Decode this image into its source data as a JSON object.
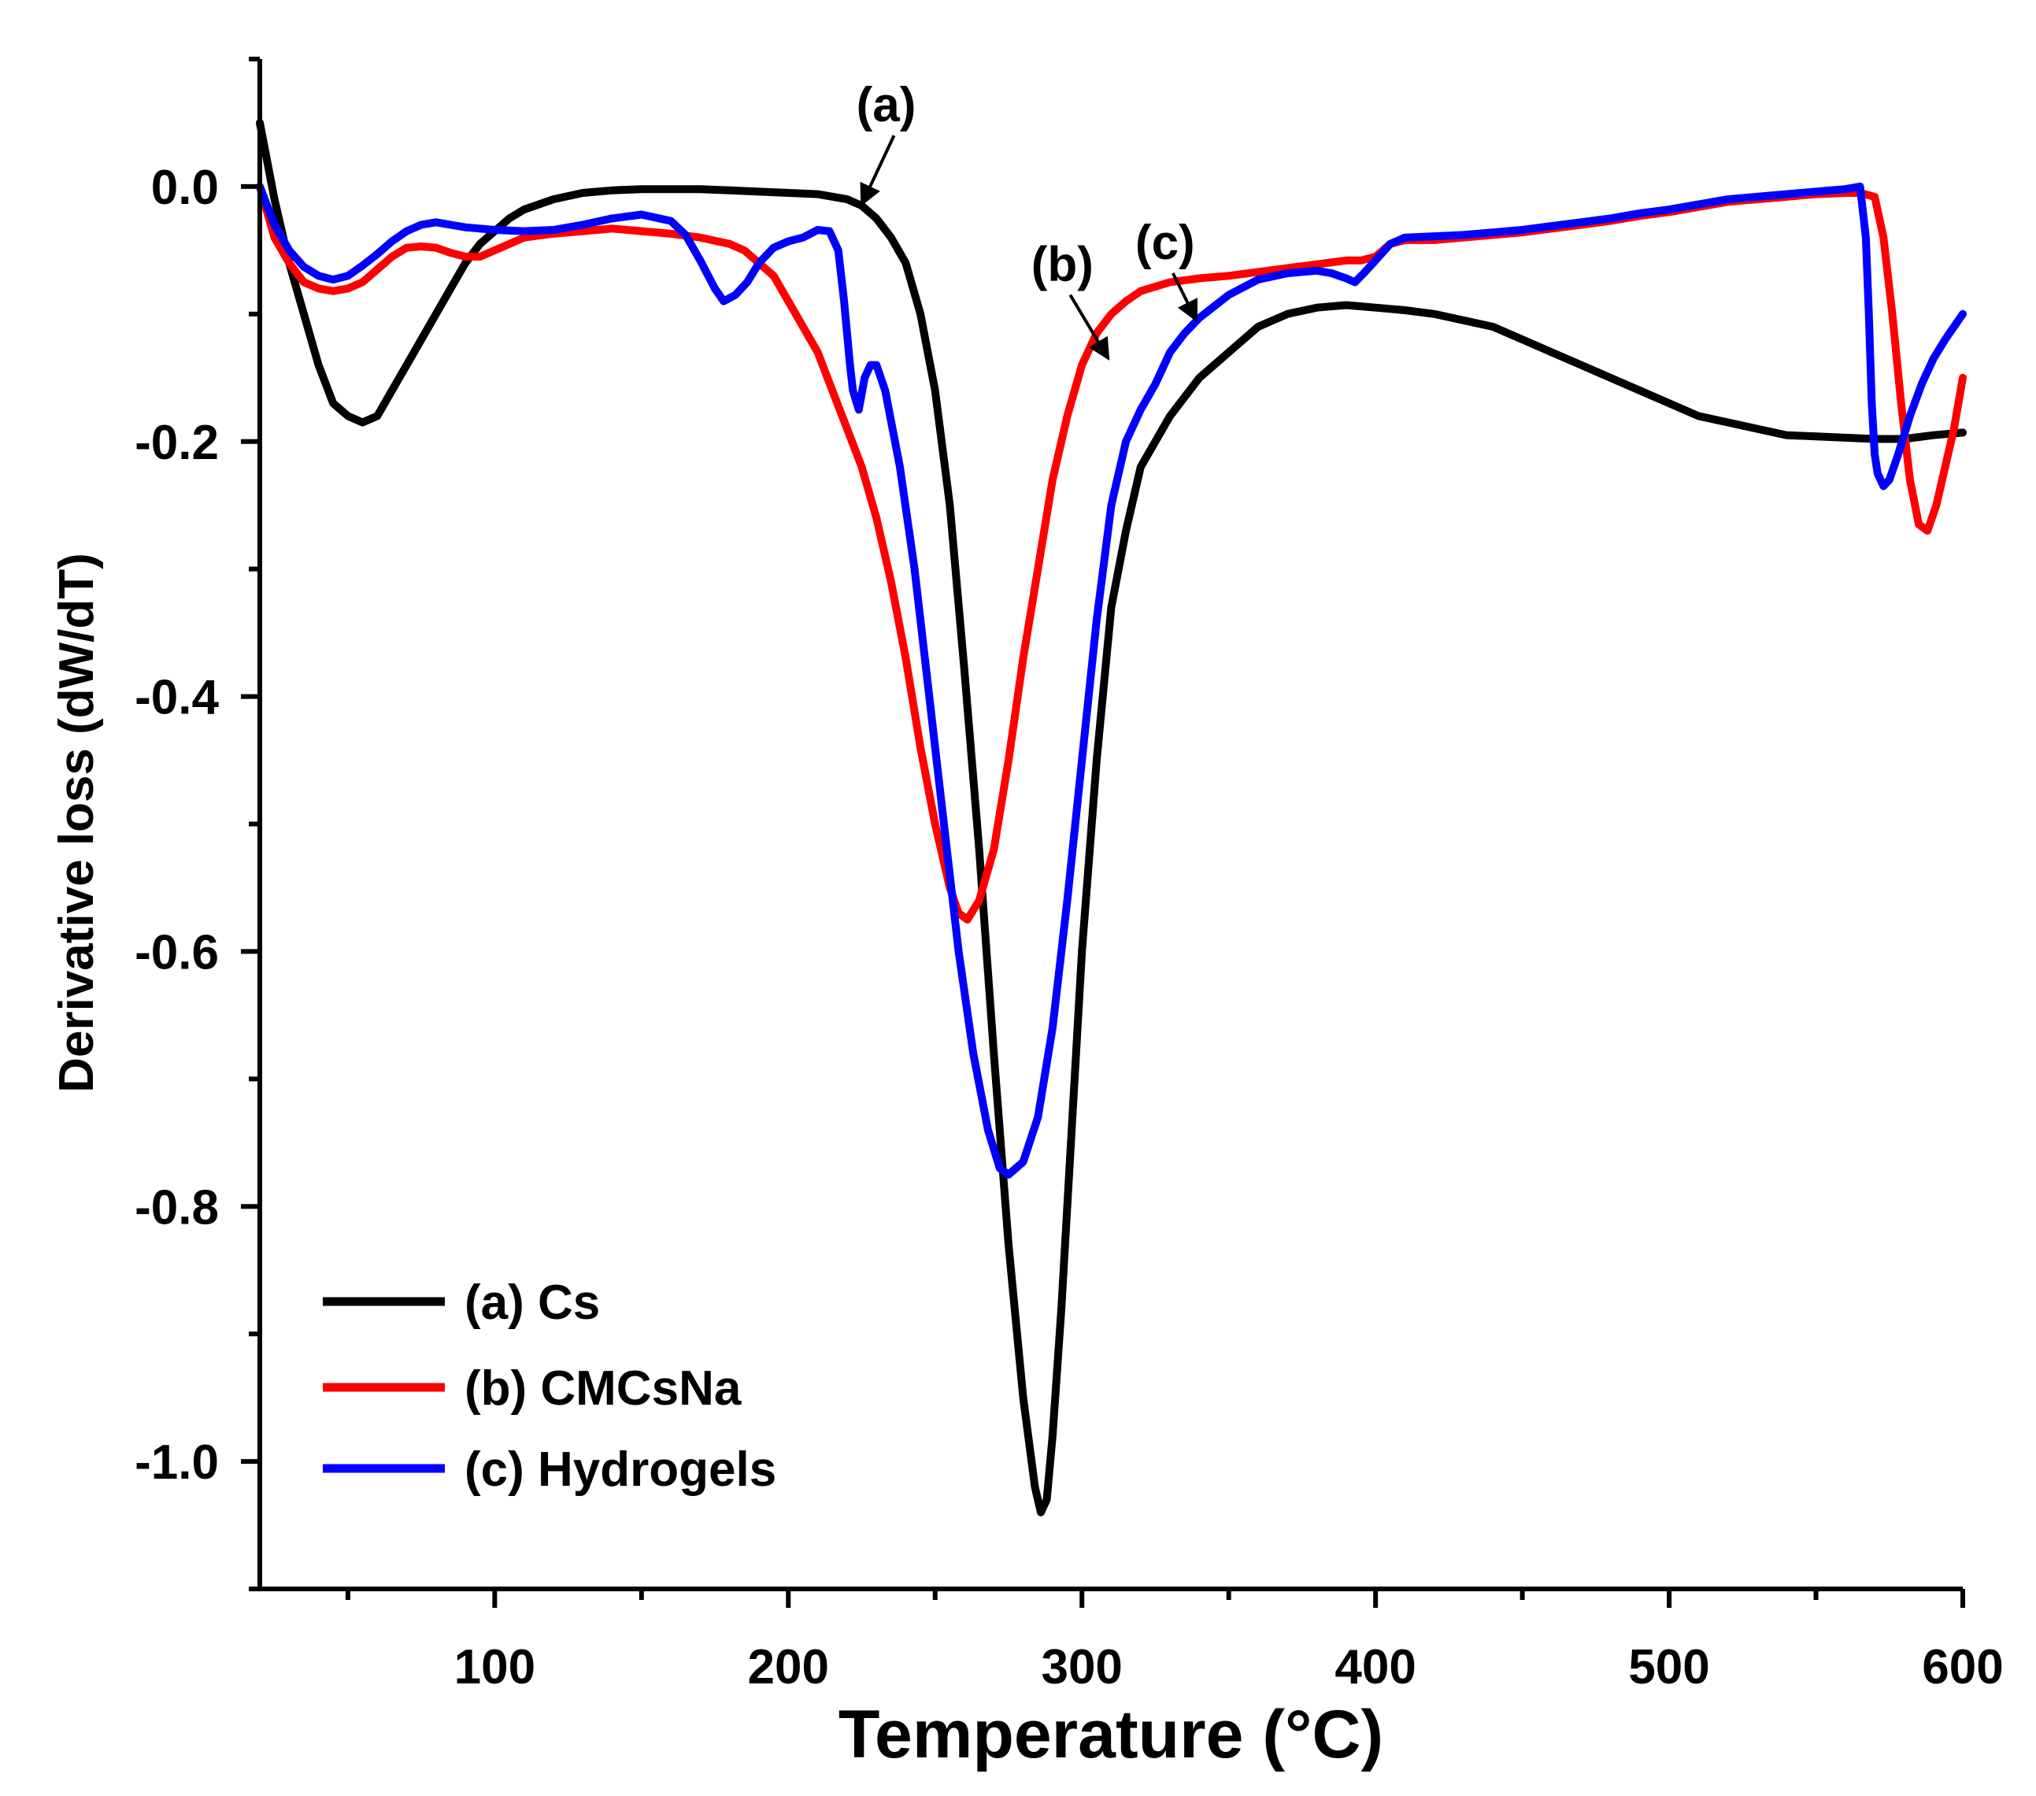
{
  "chart_data": {
    "type": "line",
    "xlabel": "Temperature (°C)",
    "ylabel": "Derivative loss (dW/dT)",
    "xlim": [
      20,
      600
    ],
    "ylim": [
      -1.1,
      0.1
    ],
    "x_ticks": [
      {
        "value": 100,
        "label": "100"
      },
      {
        "value": 200,
        "label": "200"
      },
      {
        "value": 300,
        "label": "300"
      },
      {
        "value": 400,
        "label": "400"
      },
      {
        "value": 500,
        "label": "500"
      },
      {
        "value": 600,
        "label": "600"
      }
    ],
    "x_minor_ticks": [
      50,
      150,
      250,
      350,
      450,
      550
    ],
    "y_ticks": [
      {
        "value": 0.0,
        "label": "0.0"
      },
      {
        "value": -0.2,
        "label": "-0.2"
      },
      {
        "value": -0.4,
        "label": "-0.4"
      },
      {
        "value": -0.6,
        "label": "-0.6"
      },
      {
        "value": -0.8,
        "label": "-0.8"
      },
      {
        "value": -1.0,
        "label": "-1.0"
      }
    ],
    "y_minor_ticks": [
      0.1,
      -0.1,
      -0.3,
      -0.5,
      -0.7,
      -0.9,
      -1.1
    ],
    "series": [
      {
        "name": "(a) Cs",
        "color": "#000000",
        "points": [
          [
            20,
            0.05
          ],
          [
            25,
            -0.01
          ],
          [
            30,
            -0.06
          ],
          [
            35,
            -0.1
          ],
          [
            40,
            -0.14
          ],
          [
            45,
            -0.17
          ],
          [
            50,
            -0.18
          ],
          [
            55,
            -0.185
          ],
          [
            60,
            -0.18
          ],
          [
            65,
            -0.16
          ],
          [
            70,
            -0.14
          ],
          [
            75,
            -0.12
          ],
          [
            80,
            -0.1
          ],
          [
            85,
            -0.08
          ],
          [
            90,
            -0.06
          ],
          [
            95,
            -0.045
          ],
          [
            100,
            -0.035
          ],
          [
            105,
            -0.025
          ],
          [
            110,
            -0.018
          ],
          [
            120,
            -0.01
          ],
          [
            130,
            -0.005
          ],
          [
            140,
            -0.003
          ],
          [
            150,
            -0.002
          ],
          [
            160,
            -0.002
          ],
          [
            170,
            -0.002
          ],
          [
            180,
            -0.003
          ],
          [
            190,
            -0.004
          ],
          [
            200,
            -0.005
          ],
          [
            210,
            -0.006
          ],
          [
            220,
            -0.01
          ],
          [
            225,
            -0.015
          ],
          [
            230,
            -0.025
          ],
          [
            235,
            -0.04
          ],
          [
            240,
            -0.06
          ],
          [
            245,
            -0.1
          ],
          [
            250,
            -0.16
          ],
          [
            255,
            -0.25
          ],
          [
            260,
            -0.38
          ],
          [
            265,
            -0.52
          ],
          [
            270,
            -0.68
          ],
          [
            275,
            -0.83
          ],
          [
            280,
            -0.95
          ],
          [
            284,
            -1.02
          ],
          [
            286,
            -1.04
          ],
          [
            288,
            -1.03
          ],
          [
            290,
            -0.98
          ],
          [
            293,
            -0.88
          ],
          [
            296,
            -0.76
          ],
          [
            300,
            -0.6
          ],
          [
            305,
            -0.45
          ],
          [
            310,
            -0.33
          ],
          [
            315,
            -0.27
          ],
          [
            320,
            -0.22
          ],
          [
            330,
            -0.18
          ],
          [
            340,
            -0.15
          ],
          [
            350,
            -0.13
          ],
          [
            360,
            -0.11
          ],
          [
            370,
            -0.1
          ],
          [
            380,
            -0.095
          ],
          [
            390,
            -0.093
          ],
          [
            400,
            -0.095
          ],
          [
            410,
            -0.097
          ],
          [
            420,
            -0.1
          ],
          [
            430,
            -0.105
          ],
          [
            440,
            -0.11
          ],
          [
            450,
            -0.12
          ],
          [
            460,
            -0.13
          ],
          [
            470,
            -0.14
          ],
          [
            480,
            -0.15
          ],
          [
            490,
            -0.16
          ],
          [
            500,
            -0.17
          ],
          [
            510,
            -0.18
          ],
          [
            520,
            -0.185
          ],
          [
            530,
            -0.19
          ],
          [
            540,
            -0.195
          ],
          [
            550,
            -0.196
          ],
          [
            560,
            -0.197
          ],
          [
            570,
            -0.198
          ],
          [
            580,
            -0.198
          ],
          [
            590,
            -0.195
          ],
          [
            600,
            -0.193
          ]
        ]
      },
      {
        "name": "(b) CMCsNa",
        "color": "#ff0000",
        "points": [
          [
            20,
            0.0
          ],
          [
            25,
            -0.04
          ],
          [
            30,
            -0.06
          ],
          [
            35,
            -0.075
          ],
          [
            40,
            -0.08
          ],
          [
            45,
            -0.082
          ],
          [
            50,
            -0.08
          ],
          [
            55,
            -0.075
          ],
          [
            60,
            -0.065
          ],
          [
            65,
            -0.055
          ],
          [
            70,
            -0.048
          ],
          [
            75,
            -0.047
          ],
          [
            80,
            -0.048
          ],
          [
            85,
            -0.052
          ],
          [
            90,
            -0.055
          ],
          [
            95,
            -0.055
          ],
          [
            100,
            -0.05
          ],
          [
            105,
            -0.045
          ],
          [
            110,
            -0.04
          ],
          [
            120,
            -0.037
          ],
          [
            130,
            -0.035
          ],
          [
            140,
            -0.033
          ],
          [
            150,
            -0.035
          ],
          [
            160,
            -0.037
          ],
          [
            170,
            -0.04
          ],
          [
            180,
            -0.045
          ],
          [
            185,
            -0.05
          ],
          [
            190,
            -0.06
          ],
          [
            195,
            -0.07
          ],
          [
            200,
            -0.09
          ],
          [
            205,
            -0.11
          ],
          [
            210,
            -0.13
          ],
          [
            215,
            -0.16
          ],
          [
            220,
            -0.19
          ],
          [
            225,
            -0.22
          ],
          [
            230,
            -0.26
          ],
          [
            235,
            -0.31
          ],
          [
            240,
            -0.37
          ],
          [
            245,
            -0.44
          ],
          [
            250,
            -0.5
          ],
          [
            255,
            -0.55
          ],
          [
            258,
            -0.57
          ],
          [
            261,
            -0.575
          ],
          [
            265,
            -0.56
          ],
          [
            270,
            -0.52
          ],
          [
            275,
            -0.45
          ],
          [
            280,
            -0.37
          ],
          [
            285,
            -0.3
          ],
          [
            290,
            -0.23
          ],
          [
            295,
            -0.18
          ],
          [
            300,
            -0.14
          ],
          [
            305,
            -0.115
          ],
          [
            310,
            -0.1
          ],
          [
            315,
            -0.09
          ],
          [
            320,
            -0.082
          ],
          [
            330,
            -0.075
          ],
          [
            340,
            -0.072
          ],
          [
            350,
            -0.07
          ],
          [
            360,
            -0.067
          ],
          [
            370,
            -0.064
          ],
          [
            380,
            -0.061
          ],
          [
            390,
            -0.058
          ],
          [
            395,
            -0.058
          ],
          [
            400,
            -0.055
          ],
          [
            405,
            -0.045
          ],
          [
            410,
            -0.042
          ],
          [
            420,
            -0.042
          ],
          [
            430,
            -0.04
          ],
          [
            440,
            -0.038
          ],
          [
            450,
            -0.036
          ],
          [
            460,
            -0.033
          ],
          [
            470,
            -0.03
          ],
          [
            480,
            -0.027
          ],
          [
            490,
            -0.023
          ],
          [
            500,
            -0.02
          ],
          [
            510,
            -0.016
          ],
          [
            520,
            -0.012
          ],
          [
            530,
            -0.01
          ],
          [
            540,
            -0.008
          ],
          [
            550,
            -0.006
          ],
          [
            560,
            -0.005
          ],
          [
            565,
            -0.005
          ],
          [
            570,
            -0.008
          ],
          [
            573,
            -0.04
          ],
          [
            576,
            -0.1
          ],
          [
            579,
            -0.17
          ],
          [
            582,
            -0.23
          ],
          [
            585,
            -0.265
          ],
          [
            588,
            -0.27
          ],
          [
            591,
            -0.25
          ],
          [
            594,
            -0.22
          ],
          [
            597,
            -0.19
          ],
          [
            600,
            -0.15
          ]
        ]
      },
      {
        "name": "(c) Hydrogels",
        "color": "#0000ff",
        "points": [
          [
            20,
            0.0
          ],
          [
            25,
            -0.03
          ],
          [
            30,
            -0.05
          ],
          [
            35,
            -0.063
          ],
          [
            40,
            -0.07
          ],
          [
            45,
            -0.073
          ],
          [
            50,
            -0.07
          ],
          [
            55,
            -0.062
          ],
          [
            60,
            -0.053
          ],
          [
            65,
            -0.043
          ],
          [
            70,
            -0.035
          ],
          [
            75,
            -0.03
          ],
          [
            80,
            -0.028
          ],
          [
            85,
            -0.03
          ],
          [
            90,
            -0.032
          ],
          [
            100,
            -0.034
          ],
          [
            110,
            -0.035
          ],
          [
            120,
            -0.034
          ],
          [
            130,
            -0.03
          ],
          [
            140,
            -0.025
          ],
          [
            150,
            -0.022
          ],
          [
            160,
            -0.027
          ],
          [
            165,
            -0.038
          ],
          [
            170,
            -0.058
          ],
          [
            175,
            -0.08
          ],
          [
            178,
            -0.09
          ],
          [
            182,
            -0.085
          ],
          [
            186,
            -0.075
          ],
          [
            190,
            -0.06
          ],
          [
            195,
            -0.048
          ],
          [
            200,
            -0.043
          ],
          [
            205,
            -0.04
          ],
          [
            210,
            -0.034
          ],
          [
            214,
            -0.035
          ],
          [
            217,
            -0.05
          ],
          [
            219,
            -0.09
          ],
          [
            221,
            -0.14
          ],
          [
            222,
            -0.16
          ],
          [
            224,
            -0.175
          ],
          [
            226,
            -0.15
          ],
          [
            228,
            -0.14
          ],
          [
            230,
            -0.14
          ],
          [
            233,
            -0.16
          ],
          [
            238,
            -0.22
          ],
          [
            243,
            -0.3
          ],
          [
            248,
            -0.4
          ],
          [
            253,
            -0.5
          ],
          [
            258,
            -0.6
          ],
          [
            263,
            -0.68
          ],
          [
            268,
            -0.74
          ],
          [
            272,
            -0.77
          ],
          [
            275,
            -0.775
          ],
          [
            280,
            -0.765
          ],
          [
            285,
            -0.73
          ],
          [
            290,
            -0.66
          ],
          [
            295,
            -0.56
          ],
          [
            300,
            -0.45
          ],
          [
            305,
            -0.34
          ],
          [
            310,
            -0.25
          ],
          [
            315,
            -0.2
          ],
          [
            320,
            -0.175
          ],
          [
            325,
            -0.155
          ],
          [
            330,
            -0.13
          ],
          [
            335,
            -0.115
          ],
          [
            340,
            -0.103
          ],
          [
            350,
            -0.085
          ],
          [
            360,
            -0.073
          ],
          [
            370,
            -0.068
          ],
          [
            380,
            -0.066
          ],
          [
            385,
            -0.068
          ],
          [
            390,
            -0.072
          ],
          [
            393,
            -0.075
          ],
          [
            396,
            -0.068
          ],
          [
            400,
            -0.058
          ],
          [
            405,
            -0.045
          ],
          [
            410,
            -0.04
          ],
          [
            420,
            -0.039
          ],
          [
            430,
            -0.038
          ],
          [
            440,
            -0.036
          ],
          [
            450,
            -0.034
          ],
          [
            460,
            -0.031
          ],
          [
            470,
            -0.028
          ],
          [
            480,
            -0.025
          ],
          [
            490,
            -0.021
          ],
          [
            500,
            -0.018
          ],
          [
            510,
            -0.014
          ],
          [
            520,
            -0.01
          ],
          [
            530,
            -0.008
          ],
          [
            540,
            -0.006
          ],
          [
            550,
            -0.004
          ],
          [
            560,
            -0.002
          ],
          [
            565,
            0.0
          ],
          [
            567,
            -0.04
          ],
          [
            568,
            -0.1
          ],
          [
            569,
            -0.17
          ],
          [
            570,
            -0.21
          ],
          [
            571,
            -0.225
          ],
          [
            573,
            -0.235
          ],
          [
            575,
            -0.23
          ],
          [
            578,
            -0.21
          ],
          [
            582,
            -0.18
          ],
          [
            586,
            -0.155
          ],
          [
            590,
            -0.135
          ],
          [
            594,
            -0.12
          ],
          [
            597,
            -0.11
          ],
          [
            600,
            -0.1
          ]
        ]
      }
    ],
    "legend": {
      "position": "bottom-left",
      "entries": [
        "(a) Cs",
        "(b) CMCsNa",
        "(c) Hydrogels"
      ]
    },
    "annotations": [
      {
        "label": "(a)",
        "arrow_from": [
          236,
          0.04
        ],
        "arrow_to": [
          225,
          -0.014
        ]
      },
      {
        "label": "(b)",
        "arrow_from": [
          296,
          -0.085
        ],
        "arrow_to": [
          309,
          -0.135
        ]
      },
      {
        "label": "(c)",
        "arrow_from": [
          331,
          -0.068
        ],
        "arrow_to": [
          339,
          -0.105
        ]
      }
    ]
  }
}
